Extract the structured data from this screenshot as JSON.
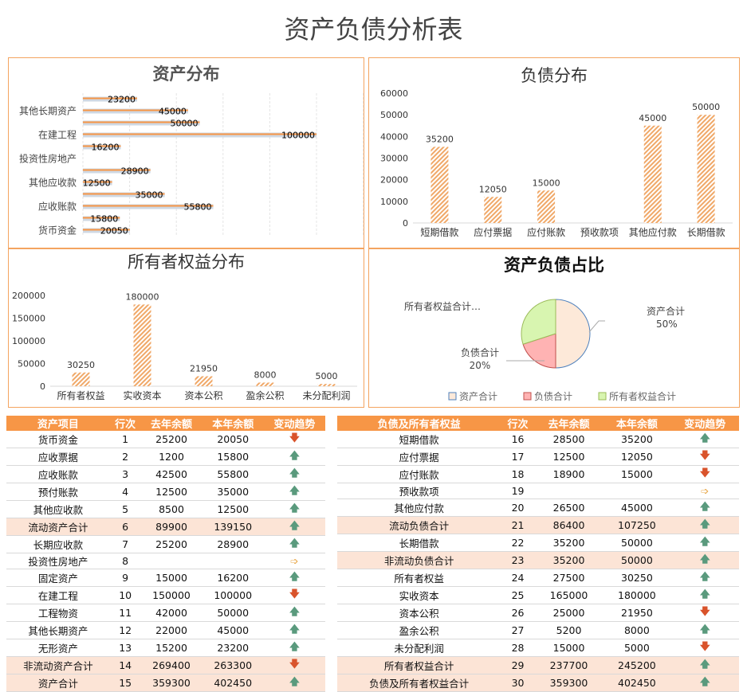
{
  "title": "资产负债分析表",
  "colors": {
    "accent": "#f79646",
    "subtotal": "#fce4d6",
    "up": "#5a9a7d",
    "down": "#d9532b",
    "flat": "#e8a84a"
  },
  "chart_data": [
    {
      "type": "bar",
      "orientation": "horizontal",
      "title": "资产分布",
      "categories": [
        "货币资金",
        "应收票据",
        "应收账款",
        "预付账款",
        "其他应收款",
        "长期应收款",
        "投资性房地产",
        "固定资产",
        "在建工程",
        "工程物资",
        "其他长期资产",
        "无形资产"
      ],
      "values": [
        20050,
        15800,
        55800,
        35000,
        12500,
        28900,
        null,
        16200,
        100000,
        50000,
        45000,
        23200
      ],
      "xlim": [
        0,
        120000
      ],
      "grid": true
    },
    {
      "type": "bar",
      "title": "负债分布",
      "categories": [
        "短期借款",
        "应付票据",
        "应付账款",
        "预收款项",
        "其他应付款",
        "长期借款"
      ],
      "values": [
        35200,
        12050,
        15000,
        null,
        45000,
        50000
      ],
      "ylim": [
        0,
        60000
      ],
      "yticks": [
        0,
        10000,
        20000,
        30000,
        40000,
        50000,
        60000
      ]
    },
    {
      "type": "bar",
      "title": "所有者权益分布",
      "categories": [
        "所有者权益",
        "实收资本",
        "资本公积",
        "盈余公积",
        "未分配利润"
      ],
      "values": [
        30250,
        180000,
        21950,
        8000,
        5000
      ],
      "ylim": [
        0,
        200000
      ],
      "yticks": [
        0,
        50000,
        100000,
        150000,
        200000
      ]
    },
    {
      "type": "pie",
      "title": "资产负债占比",
      "labels": [
        "资产合计",
        "负债合计",
        "所有者权益合计"
      ],
      "values": [
        50,
        20,
        30
      ],
      "data_labels": [
        "资产合计\n50%",
        "负债合计\n20%",
        "所有者权益合计…"
      ],
      "legend": "bottom",
      "colors": [
        "#fde9d9",
        "#ffb3b3",
        "#d8f5b0"
      ]
    }
  ],
  "left_table": {
    "headers": [
      "资产项目",
      "行次",
      "去年余额",
      "本年余额",
      "变动趋势"
    ],
    "rows": [
      [
        "货币资金",
        "1",
        "25200",
        "20050",
        "down"
      ],
      [
        "应收票据",
        "2",
        "1200",
        "15800",
        "up"
      ],
      [
        "应收账款",
        "3",
        "42500",
        "55800",
        "up"
      ],
      [
        "预付账款",
        "4",
        "12500",
        "35000",
        "up"
      ],
      [
        "其他应收款",
        "5",
        "8500",
        "12500",
        "up"
      ],
      [
        "流动资产合计",
        "6",
        "89900",
        "139150",
        "up",
        "sub"
      ],
      [
        "长期应收款",
        "7",
        "25200",
        "28900",
        "up"
      ],
      [
        "投资性房地产",
        "8",
        "",
        "",
        "flat"
      ],
      [
        "固定资产",
        "9",
        "15000",
        "16200",
        "up"
      ],
      [
        "在建工程",
        "10",
        "150000",
        "100000",
        "down"
      ],
      [
        "工程物资",
        "11",
        "42000",
        "50000",
        "up"
      ],
      [
        "其他长期资产",
        "12",
        "22000",
        "45000",
        "up"
      ],
      [
        "无形资产",
        "13",
        "15200",
        "23200",
        "up"
      ],
      [
        "非流动资产合计",
        "14",
        "269400",
        "263300",
        "down",
        "sub"
      ],
      [
        "资产合计",
        "15",
        "359300",
        "402450",
        "up",
        "sub"
      ]
    ]
  },
  "right_table": {
    "headers": [
      "负债及所有者权益",
      "行次",
      "去年余额",
      "本年余额",
      "变动趋势"
    ],
    "rows": [
      [
        "短期借款",
        "16",
        "28500",
        "35200",
        "up"
      ],
      [
        "应付票据",
        "17",
        "12500",
        "12050",
        "down"
      ],
      [
        "应付账款",
        "18",
        "18900",
        "15000",
        "down"
      ],
      [
        "预收款项",
        "19",
        "",
        "",
        "flat"
      ],
      [
        "其他应付款",
        "20",
        "26500",
        "45000",
        "up"
      ],
      [
        "流动负债合计",
        "21",
        "86400",
        "107250",
        "up",
        "sub"
      ],
      [
        "长期借款",
        "22",
        "35200",
        "50000",
        "up"
      ],
      [
        "非流动负债合计",
        "23",
        "35200",
        "50000",
        "up",
        "sub"
      ],
      [
        "所有者权益",
        "24",
        "27500",
        "30250",
        "up"
      ],
      [
        "实收资本",
        "25",
        "165000",
        "180000",
        "up"
      ],
      [
        "资本公积",
        "26",
        "25000",
        "21950",
        "down"
      ],
      [
        "盈余公积",
        "27",
        "5200",
        "8000",
        "up"
      ],
      [
        "未分配利润",
        "28",
        "15000",
        "5000",
        "down"
      ],
      [
        "所有者权益合计",
        "29",
        "237700",
        "245200",
        "up",
        "sub"
      ],
      [
        "负债及所有者权益合计",
        "30",
        "359300",
        "402450",
        "up",
        "sub"
      ]
    ]
  }
}
